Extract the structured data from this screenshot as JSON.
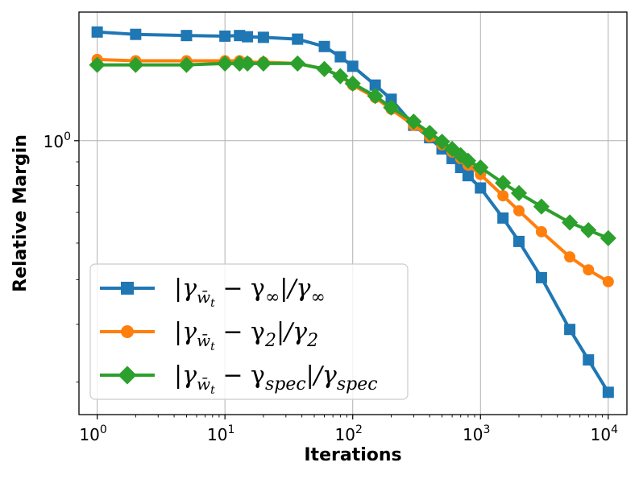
{
  "chart_data": {
    "type": "line",
    "title": "",
    "xlabel": "Iterations",
    "ylabel": "Relative Margin",
    "xscale": "log",
    "yscale": "log",
    "xlim": [
      0.72,
      14000
    ],
    "ylim": [
      0.255,
      1.9
    ],
    "grid": true,
    "legend_position": "lower-left",
    "x_ticks": [
      {
        "value": 1,
        "base": "10",
        "exp": "0"
      },
      {
        "value": 10,
        "base": "10",
        "exp": "1"
      },
      {
        "value": 100,
        "base": "10",
        "exp": "2"
      },
      {
        "value": 1000,
        "base": "10",
        "exp": "3"
      },
      {
        "value": 10000,
        "base": "10",
        "exp": "4"
      }
    ],
    "y_ticks": [
      {
        "value": 1,
        "base": "10",
        "exp": "0"
      }
    ],
    "series": [
      {
        "name": "|γw̄t − γ∞|/γ∞",
        "legend": {
          "pre": "|γ",
          "sub": "w̄",
          "subsub": "t",
          "mid": " − γ",
          "sub2": "∞",
          "post": "|/γ",
          "sub3": "∞"
        },
        "color": "#1f77b4",
        "marker": "square",
        "x": [
          1,
          2,
          5,
          10,
          13,
          15,
          20,
          37,
          60,
          80,
          100,
          150,
          200,
          300,
          400,
          500,
          600,
          700,
          800,
          1000,
          1500,
          2000,
          3000,
          5000,
          7000,
          10000
        ],
        "y": [
          1.72,
          1.7,
          1.69,
          1.685,
          1.69,
          1.68,
          1.675,
          1.66,
          1.6,
          1.52,
          1.45,
          1.32,
          1.23,
          1.08,
          1.015,
          0.96,
          0.915,
          0.875,
          0.84,
          0.79,
          0.68,
          0.605,
          0.505,
          0.39,
          0.335,
          0.285
        ]
      },
      {
        "name": "|γw̄t − γ2|/γ2",
        "legend": {
          "pre": "|γ",
          "sub": "w̄",
          "subsub": "t",
          "mid": " − γ",
          "sub2": "2",
          "post": "|/γ",
          "sub3": "2"
        },
        "color": "#ff7f0e",
        "marker": "circle",
        "x": [
          1,
          2,
          5,
          10,
          13,
          15,
          20,
          37,
          60,
          80,
          100,
          150,
          200,
          300,
          400,
          500,
          600,
          700,
          800,
          1000,
          1500,
          2000,
          3000,
          5000,
          7000,
          10000
        ],
        "y": [
          1.5,
          1.49,
          1.49,
          1.49,
          1.49,
          1.48,
          1.48,
          1.47,
          1.43,
          1.38,
          1.32,
          1.24,
          1.17,
          1.08,
          1.02,
          0.98,
          0.945,
          0.915,
          0.885,
          0.845,
          0.76,
          0.705,
          0.635,
          0.56,
          0.525,
          0.495
        ]
      },
      {
        "name": "|γw̄t − γspec|/γspec",
        "legend": {
          "pre": "|γ",
          "sub": "w̄",
          "subsub": "t",
          "mid": " − γ",
          "sub2": "spec",
          "post": "|/γ",
          "sub3": "spec"
        },
        "color": "#2ca02c",
        "marker": "diamond",
        "x": [
          1,
          2,
          5,
          10,
          13,
          15,
          20,
          37,
          60,
          80,
          100,
          150,
          200,
          300,
          400,
          500,
          600,
          700,
          800,
          1000,
          1500,
          2000,
          3000,
          5000,
          7000,
          10000
        ],
        "y": [
          1.46,
          1.46,
          1.46,
          1.47,
          1.47,
          1.47,
          1.47,
          1.47,
          1.43,
          1.38,
          1.33,
          1.25,
          1.18,
          1.1,
          1.04,
          0.995,
          0.96,
          0.93,
          0.905,
          0.875,
          0.81,
          0.77,
          0.72,
          0.665,
          0.64,
          0.615
        ]
      }
    ]
  }
}
